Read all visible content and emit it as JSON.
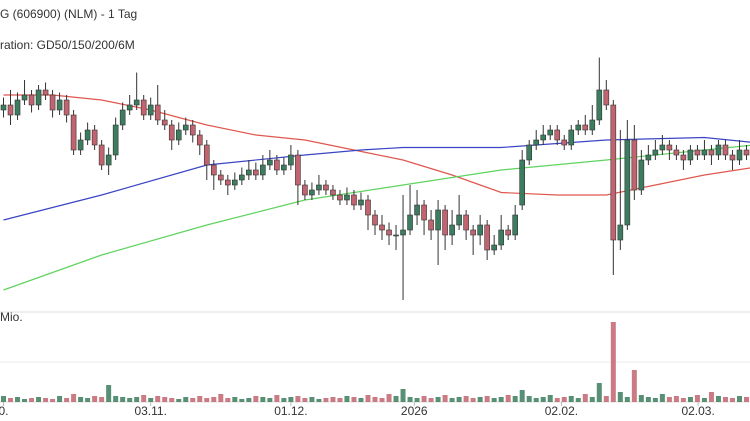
{
  "chart_data": {
    "type": "candlestick",
    "title": "G (606900) (NLM) - 1 Tag",
    "subtitle": "ration: GD50/150/200/6M",
    "volume_label": "Mio.",
    "xlim": [
      -0.5,
      106.5
    ],
    "ylim": [
      0,
      100
    ],
    "volume_ylim": [
      0,
      80
    ],
    "xticks": [
      {
        "value": 0,
        "label": "0."
      },
      {
        "value": 21,
        "label": "03.11."
      },
      {
        "value": 41,
        "label": "01.12."
      },
      {
        "value": 58.6,
        "label": "2026"
      },
      {
        "value": 79.6,
        "label": "02.02."
      },
      {
        "value": 99.1,
        "label": "02.03."
      }
    ],
    "up_color": "#3b7d5e",
    "down_color": "#c2646f",
    "open": [
      78,
      80,
      76,
      82,
      84,
      80,
      86,
      84,
      78,
      82,
      76,
      62,
      66,
      70,
      64,
      56,
      60,
      72,
      78,
      80,
      82,
      76,
      80,
      74,
      72,
      66,
      70,
      72,
      68,
      64,
      56,
      52,
      50,
      48,
      50,
      52,
      54,
      52,
      56,
      58,
      54,
      56,
      60,
      48,
      44,
      46,
      48,
      46,
      44,
      42,
      44,
      40,
      42,
      36,
      32,
      30,
      28,
      28,
      30,
      36,
      40,
      34,
      30,
      38,
      28,
      32,
      36,
      30,
      28,
      32,
      22,
      24,
      30,
      28,
      40,
      58,
      64,
      66,
      68,
      70,
      66,
      64,
      70,
      72,
      70,
      74,
      86,
      80,
      26,
      32,
      66,
      46,
      58,
      60,
      62,
      64,
      62,
      60,
      58,
      62,
      60,
      62,
      60,
      64,
      60,
      58,
      62
    ],
    "high": [
      83,
      86,
      85,
      90,
      86,
      88,
      89,
      86,
      85,
      84,
      78,
      69,
      73,
      72,
      66,
      63,
      75,
      81,
      84,
      93,
      84,
      83,
      88,
      78,
      74,
      73,
      75,
      74,
      70,
      66,
      58,
      54,
      52,
      53,
      55,
      58,
      57,
      60,
      62,
      60,
      59,
      64,
      62,
      50,
      49,
      52,
      50,
      48,
      46,
      47,
      46,
      45,
      44,
      38,
      36,
      33,
      32,
      44,
      48,
      46,
      42,
      38,
      42,
      40,
      38,
      44,
      38,
      32,
      36,
      34,
      28,
      36,
      32,
      40,
      62,
      66,
      70,
      72,
      72,
      72,
      68,
      72,
      74,
      76,
      80,
      99,
      90,
      82,
      70,
      74,
      72,
      62,
      64,
      66,
      68,
      66,
      64,
      62,
      64,
      64,
      66,
      64,
      66,
      66,
      62,
      66,
      64
    ],
    "low": [
      75,
      72,
      74,
      80,
      77,
      78,
      82,
      75,
      76,
      73,
      60,
      60,
      64,
      62,
      54,
      52,
      58,
      70,
      76,
      78,
      74,
      74,
      72,
      70,
      62,
      64,
      68,
      65,
      60,
      50,
      46,
      48,
      44,
      46,
      48,
      50,
      50,
      50,
      54,
      52,
      52,
      54,
      40,
      42,
      42,
      44,
      44,
      42,
      40,
      40,
      38,
      38,
      30,
      28,
      26,
      24,
      22,
      2,
      28,
      32,
      28,
      26,
      16,
      22,
      24,
      30,
      26,
      20,
      24,
      18,
      20,
      22,
      26,
      26,
      38,
      56,
      62,
      64,
      66,
      64,
      62,
      62,
      68,
      68,
      68,
      72,
      78,
      12,
      22,
      30,
      42,
      44,
      56,
      58,
      60,
      58,
      58,
      54,
      56,
      58,
      58,
      56,
      58,
      58,
      54,
      56,
      58
    ],
    "close": [
      80,
      76,
      82,
      84,
      80,
      86,
      84,
      78,
      82,
      76,
      62,
      66,
      70,
      64,
      56,
      60,
      72,
      78,
      80,
      82,
      76,
      80,
      74,
      72,
      66,
      70,
      72,
      68,
      64,
      56,
      52,
      50,
      48,
      50,
      52,
      54,
      52,
      56,
      58,
      54,
      56,
      60,
      48,
      44,
      46,
      48,
      46,
      44,
      42,
      44,
      40,
      42,
      36,
      32,
      30,
      28,
      28,
      30,
      36,
      40,
      34,
      30,
      38,
      28,
      32,
      36,
      30,
      28,
      32,
      22,
      24,
      30,
      28,
      36,
      58,
      64,
      66,
      68,
      70,
      66,
      64,
      70,
      72,
      70,
      74,
      86,
      80,
      26,
      32,
      66,
      46,
      58,
      60,
      62,
      64,
      62,
      60,
      58,
      62,
      60,
      62,
      60,
      64,
      60,
      58,
      62,
      60
    ],
    "volume": [
      6,
      4,
      5,
      3,
      4,
      5,
      4,
      3,
      6,
      4,
      8,
      5,
      4,
      6,
      5,
      17,
      6,
      5,
      4,
      5,
      7,
      4,
      6,
      5,
      4,
      3,
      5,
      4,
      6,
      4,
      5,
      8,
      4,
      5,
      3,
      4,
      6,
      5,
      4,
      7,
      4,
      5,
      6,
      4,
      5,
      3,
      4,
      5,
      4,
      6,
      5,
      4,
      7,
      5,
      4,
      8,
      6,
      13,
      5,
      4,
      6,
      4,
      5,
      7,
      4,
      5,
      6,
      4,
      5,
      6,
      4,
      5,
      7,
      6,
      12,
      6,
      4,
      5,
      7,
      4,
      5,
      6,
      4,
      8,
      5,
      19,
      6,
      80,
      10,
      5,
      32,
      7,
      5,
      4,
      8,
      5,
      6,
      4,
      5,
      7,
      4,
      10,
      6,
      5,
      4,
      6,
      5
    ],
    "ma": [
      {
        "color": "#e0574f",
        "x": [
          0,
          7,
          14,
          21,
          29,
          36,
          43,
          50,
          57,
          64,
          71,
          79,
          86,
          93,
          100,
          107
        ],
        "values": [
          84,
          84,
          82,
          78,
          72,
          68,
          66,
          62,
          58,
          52,
          45,
          44,
          44,
          48,
          52,
          55
        ]
      },
      {
        "color": "#3b45c4",
        "x": [
          0,
          14,
          29,
          43,
          51,
          57,
          71,
          86,
          100,
          107
        ],
        "values": [
          34,
          44,
          56,
          60,
          62,
          63,
          63,
          66,
          67,
          65
        ]
      },
      {
        "color": "#5fd35f",
        "x": [
          0,
          14,
          29,
          43,
          57,
          71,
          86,
          100,
          107
        ],
        "values": [
          6,
          20,
          32,
          42,
          48,
          54,
          58,
          62,
          64
        ]
      }
    ]
  }
}
